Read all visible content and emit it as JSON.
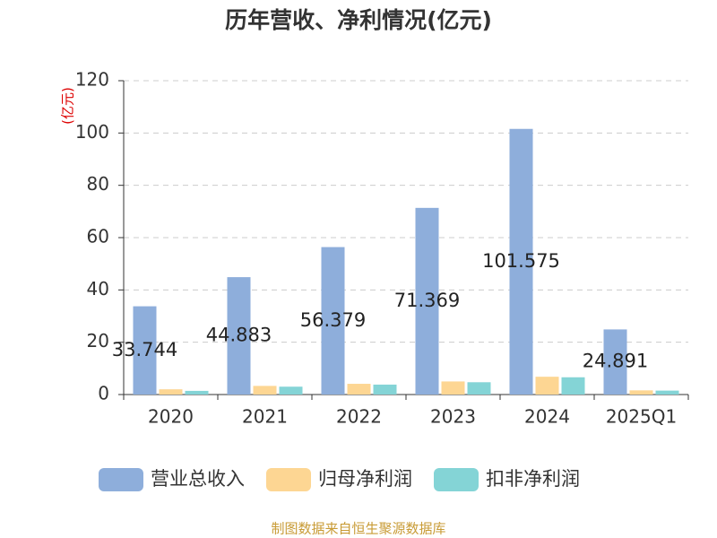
{
  "chart_data": {
    "type": "bar",
    "title": "历年营收、净利情况(亿元)",
    "y_label": "(亿元)",
    "categories": [
      "2020",
      "2021",
      "2022",
      "2023",
      "2024",
      "2025Q1"
    ],
    "series": [
      {
        "name": "营业总收入",
        "color": "#8eaedb",
        "values": [
          33.744,
          44.883,
          56.379,
          71.369,
          101.575,
          24.891
        ],
        "show_labels": true
      },
      {
        "name": "归母净利润",
        "color": "#fdd693",
        "values": [
          2.0,
          3.3,
          4.1,
          5.0,
          6.8,
          1.6
        ],
        "show_labels": false
      },
      {
        "name": "扣非净利润",
        "color": "#84d4d6",
        "values": [
          1.4,
          3.0,
          3.8,
          4.7,
          6.6,
          1.5
        ],
        "show_labels": false
      }
    ],
    "ylim": [
      0,
      120
    ],
    "yticks": [
      0,
      20,
      40,
      60,
      80,
      100,
      120
    ],
    "grid": true,
    "source": "制图数据来自恒生聚源数据库"
  }
}
